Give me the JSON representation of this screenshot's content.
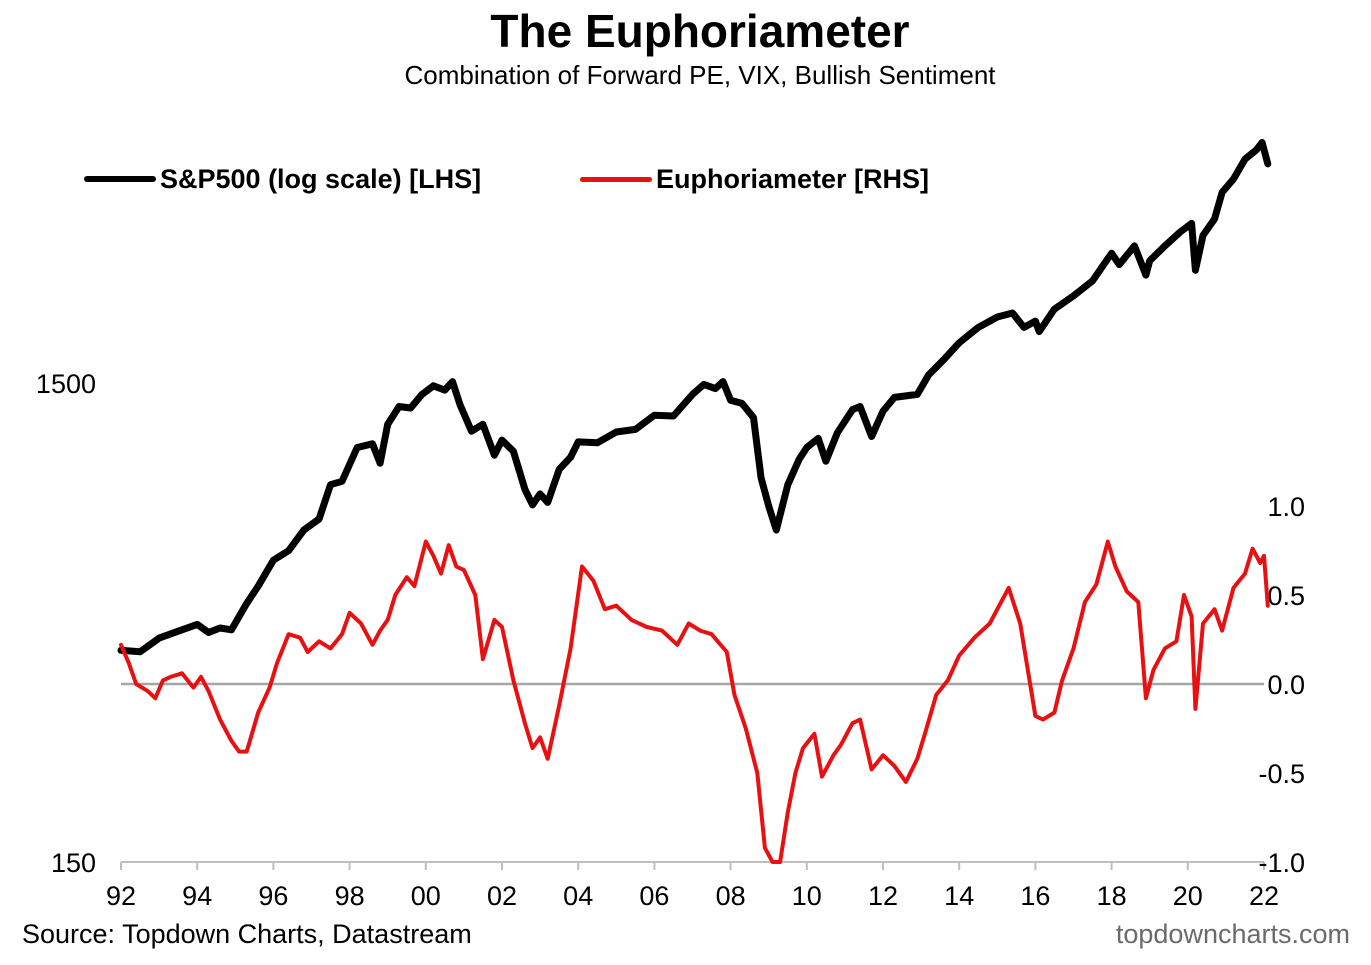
{
  "chart_data": {
    "type": "line",
    "title": "The Euphoriameter",
    "subtitle": "Combination of Forward PE, VIX, Bullish Sentiment",
    "x_ticks": [
      "92",
      "94",
      "96",
      "98",
      "00",
      "02",
      "04",
      "06",
      "08",
      "10",
      "12",
      "14",
      "16",
      "18",
      "20",
      "22"
    ],
    "xlim": [
      1992,
      2022
    ],
    "left_axis": {
      "scale": "log",
      "ylim": [
        150,
        6000
      ],
      "tick_labels": [
        {
          "value": 1500,
          "label": "1500"
        },
        {
          "value": 150,
          "label": "150"
        }
      ]
    },
    "right_axis": {
      "scale": "linear",
      "ylim": [
        -1.0,
        1.0
      ],
      "tick_labels": [
        "1.0",
        "0.5",
        "0.0",
        "-0.5",
        "-1.0"
      ],
      "tick_values": [
        1.0,
        0.5,
        0.0,
        -0.5,
        -1.0
      ]
    },
    "zero_line": true,
    "legend_position": "top-left",
    "series": [
      {
        "name": "S&P500 (log scale) [LHS]",
        "axis": "left",
        "color": "#000000",
        "points": [
          [
            1992.0,
            415
          ],
          [
            1992.5,
            412
          ],
          [
            1993.0,
            440
          ],
          [
            1993.5,
            455
          ],
          [
            1994.0,
            470
          ],
          [
            1994.3,
            452
          ],
          [
            1994.6,
            462
          ],
          [
            1994.9,
            458
          ],
          [
            1995.3,
            520
          ],
          [
            1995.6,
            565
          ],
          [
            1996.0,
            640
          ],
          [
            1996.4,
            670
          ],
          [
            1996.8,
            740
          ],
          [
            1997.2,
            780
          ],
          [
            1997.5,
            920
          ],
          [
            1997.8,
            935
          ],
          [
            1998.2,
            1100
          ],
          [
            1998.6,
            1120
          ],
          [
            1998.8,
            1020
          ],
          [
            1999.0,
            1230
          ],
          [
            1999.3,
            1340
          ],
          [
            1999.6,
            1330
          ],
          [
            1999.9,
            1420
          ],
          [
            2000.2,
            1480
          ],
          [
            2000.5,
            1450
          ],
          [
            2000.7,
            1510
          ],
          [
            2000.9,
            1350
          ],
          [
            2001.2,
            1190
          ],
          [
            2001.5,
            1230
          ],
          [
            2001.8,
            1060
          ],
          [
            2002.0,
            1140
          ],
          [
            2002.3,
            1080
          ],
          [
            2002.6,
            900
          ],
          [
            2002.8,
            835
          ],
          [
            2003.0,
            880
          ],
          [
            2003.2,
            845
          ],
          [
            2003.5,
            990
          ],
          [
            2003.8,
            1050
          ],
          [
            2004.0,
            1130
          ],
          [
            2004.5,
            1125
          ],
          [
            2005.0,
            1185
          ],
          [
            2005.5,
            1200
          ],
          [
            2006.0,
            1285
          ],
          [
            2006.5,
            1280
          ],
          [
            2007.0,
            1420
          ],
          [
            2007.3,
            1490
          ],
          [
            2007.6,
            1460
          ],
          [
            2007.8,
            1510
          ],
          [
            2008.0,
            1380
          ],
          [
            2008.3,
            1360
          ],
          [
            2008.6,
            1270
          ],
          [
            2008.8,
            950
          ],
          [
            2009.0,
            830
          ],
          [
            2009.2,
            740
          ],
          [
            2009.5,
            920
          ],
          [
            2009.8,
            1040
          ],
          [
            2010.0,
            1100
          ],
          [
            2010.3,
            1150
          ],
          [
            2010.5,
            1030
          ],
          [
            2010.8,
            1180
          ],
          [
            2011.2,
            1320
          ],
          [
            2011.4,
            1340
          ],
          [
            2011.7,
            1160
          ],
          [
            2012.0,
            1310
          ],
          [
            2012.3,
            1400
          ],
          [
            2012.6,
            1410
          ],
          [
            2012.9,
            1420
          ],
          [
            2013.2,
            1560
          ],
          [
            2013.6,
            1680
          ],
          [
            2014.0,
            1820
          ],
          [
            2014.5,
            1960
          ],
          [
            2015.0,
            2060
          ],
          [
            2015.4,
            2100
          ],
          [
            2015.7,
            1960
          ],
          [
            2016.0,
            2020
          ],
          [
            2016.1,
            1920
          ],
          [
            2016.5,
            2140
          ],
          [
            2017.0,
            2280
          ],
          [
            2017.5,
            2450
          ],
          [
            2018.0,
            2800
          ],
          [
            2018.2,
            2650
          ],
          [
            2018.6,
            2900
          ],
          [
            2018.9,
            2520
          ],
          [
            2019.0,
            2700
          ],
          [
            2019.4,
            2900
          ],
          [
            2019.8,
            3100
          ],
          [
            2020.1,
            3230
          ],
          [
            2020.2,
            2580
          ],
          [
            2020.4,
            3050
          ],
          [
            2020.7,
            3300
          ],
          [
            2020.9,
            3750
          ],
          [
            2021.2,
            4000
          ],
          [
            2021.5,
            4400
          ],
          [
            2021.8,
            4600
          ],
          [
            2021.95,
            4766
          ],
          [
            2022.1,
            4300
          ]
        ]
      },
      {
        "name": "Euphoriameter [RHS]",
        "axis": "right",
        "color": "#e81010",
        "points": [
          [
            1992.0,
            0.22
          ],
          [
            1992.2,
            0.12
          ],
          [
            1992.4,
            0.0
          ],
          [
            1992.7,
            -0.04
          ],
          [
            1992.9,
            -0.08
          ],
          [
            1993.1,
            0.02
          ],
          [
            1993.3,
            0.04
          ],
          [
            1993.6,
            0.06
          ],
          [
            1993.9,
            -0.02
          ],
          [
            1994.1,
            0.04
          ],
          [
            1994.3,
            -0.04
          ],
          [
            1994.6,
            -0.2
          ],
          [
            1994.9,
            -0.32
          ],
          [
            1995.1,
            -0.38
          ],
          [
            1995.3,
            -0.38
          ],
          [
            1995.6,
            -0.16
          ],
          [
            1995.9,
            -0.02
          ],
          [
            1996.1,
            0.12
          ],
          [
            1996.4,
            0.28
          ],
          [
            1996.7,
            0.26
          ],
          [
            1996.9,
            0.18
          ],
          [
            1997.2,
            0.24
          ],
          [
            1997.5,
            0.2
          ],
          [
            1997.8,
            0.28
          ],
          [
            1998.0,
            0.4
          ],
          [
            1998.3,
            0.34
          ],
          [
            1998.6,
            0.22
          ],
          [
            1998.8,
            0.3
          ],
          [
            1999.0,
            0.36
          ],
          [
            1999.2,
            0.5
          ],
          [
            1999.5,
            0.6
          ],
          [
            1999.7,
            0.55
          ],
          [
            2000.0,
            0.8
          ],
          [
            2000.2,
            0.72
          ],
          [
            2000.4,
            0.62
          ],
          [
            2000.6,
            0.78
          ],
          [
            2000.8,
            0.66
          ],
          [
            2001.0,
            0.64
          ],
          [
            2001.3,
            0.5
          ],
          [
            2001.5,
            0.14
          ],
          [
            2001.8,
            0.36
          ],
          [
            2002.0,
            0.32
          ],
          [
            2002.3,
            0.02
          ],
          [
            2002.6,
            -0.22
          ],
          [
            2002.8,
            -0.36
          ],
          [
            2003.0,
            -0.3
          ],
          [
            2003.2,
            -0.42
          ],
          [
            2003.5,
            -0.12
          ],
          [
            2003.8,
            0.2
          ],
          [
            2004.1,
            0.66
          ],
          [
            2004.4,
            0.58
          ],
          [
            2004.7,
            0.42
          ],
          [
            2005.0,
            0.44
          ],
          [
            2005.4,
            0.36
          ],
          [
            2005.8,
            0.32
          ],
          [
            2006.2,
            0.3
          ],
          [
            2006.6,
            0.22
          ],
          [
            2006.9,
            0.34
          ],
          [
            2007.2,
            0.3
          ],
          [
            2007.5,
            0.28
          ],
          [
            2007.9,
            0.18
          ],
          [
            2008.1,
            -0.06
          ],
          [
            2008.4,
            -0.25
          ],
          [
            2008.7,
            -0.5
          ],
          [
            2008.9,
            -0.92
          ],
          [
            2009.1,
            -1.0
          ],
          [
            2009.3,
            -1.0
          ],
          [
            2009.5,
            -0.72
          ],
          [
            2009.7,
            -0.5
          ],
          [
            2009.9,
            -0.36
          ],
          [
            2010.2,
            -0.28
          ],
          [
            2010.4,
            -0.52
          ],
          [
            2010.7,
            -0.4
          ],
          [
            2010.9,
            -0.34
          ],
          [
            2011.2,
            -0.22
          ],
          [
            2011.4,
            -0.2
          ],
          [
            2011.7,
            -0.48
          ],
          [
            2012.0,
            -0.4
          ],
          [
            2012.3,
            -0.46
          ],
          [
            2012.6,
            -0.55
          ],
          [
            2012.9,
            -0.42
          ],
          [
            2013.1,
            -0.28
          ],
          [
            2013.4,
            -0.06
          ],
          [
            2013.7,
            0.02
          ],
          [
            2014.0,
            0.16
          ],
          [
            2014.4,
            0.26
          ],
          [
            2014.8,
            0.34
          ],
          [
            2015.1,
            0.46
          ],
          [
            2015.3,
            0.54
          ],
          [
            2015.6,
            0.34
          ],
          [
            2015.8,
            0.08
          ],
          [
            2016.0,
            -0.18
          ],
          [
            2016.2,
            -0.2
          ],
          [
            2016.5,
            -0.16
          ],
          [
            2016.7,
            0.02
          ],
          [
            2017.0,
            0.2
          ],
          [
            2017.3,
            0.46
          ],
          [
            2017.6,
            0.56
          ],
          [
            2017.9,
            0.8
          ],
          [
            2018.1,
            0.66
          ],
          [
            2018.4,
            0.52
          ],
          [
            2018.7,
            0.46
          ],
          [
            2018.9,
            -0.08
          ],
          [
            2019.1,
            0.08
          ],
          [
            2019.4,
            0.2
          ],
          [
            2019.7,
            0.24
          ],
          [
            2019.9,
            0.5
          ],
          [
            2020.1,
            0.38
          ],
          [
            2020.2,
            -0.14
          ],
          [
            2020.4,
            0.34
          ],
          [
            2020.7,
            0.42
          ],
          [
            2020.9,
            0.3
          ],
          [
            2021.2,
            0.54
          ],
          [
            2021.5,
            0.62
          ],
          [
            2021.7,
            0.76
          ],
          [
            2021.9,
            0.68
          ],
          [
            2022.0,
            0.72
          ],
          [
            2022.1,
            0.44
          ]
        ]
      }
    ]
  },
  "legend": [
    {
      "label": "S&P500 (log scale) [LHS]",
      "color": "#000000"
    },
    {
      "label": "Euphoriameter [RHS]",
      "color": "#e81010"
    }
  ],
  "footer": {
    "source": "Source: Topdown Charts, Datastream",
    "brand": "topdowncharts.com"
  }
}
